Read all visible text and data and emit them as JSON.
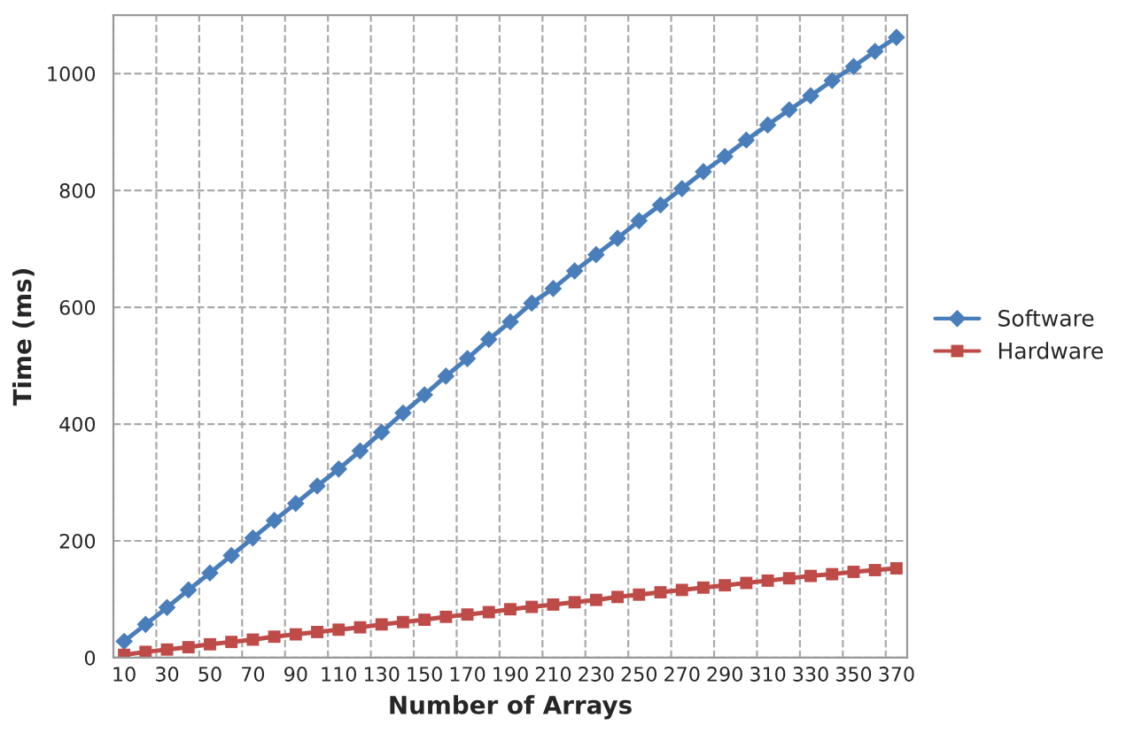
{
  "chart_data": {
    "type": "line",
    "xlabel": "Number of Arrays",
    "ylabel": "Time (ms)",
    "categories": [
      "10",
      null,
      "30",
      null,
      "50",
      null,
      "70",
      null,
      "90",
      null,
      "110",
      null,
      "130",
      null,
      "150",
      null,
      "170",
      null,
      "190",
      null,
      "210",
      null,
      "230",
      null,
      "250",
      null,
      "270",
      null,
      "290",
      null,
      "310",
      null,
      "330",
      null,
      "350",
      null,
      "370"
    ],
    "series": [
      {
        "name": "Software",
        "color": "#4a7ebb",
        "marker": "diamond",
        "values": [
          28,
          57,
          86,
          116,
          145,
          175,
          205,
          235,
          264,
          294,
          323,
          354,
          386,
          419,
          450,
          482,
          512,
          545,
          575,
          607,
          632,
          662,
          690,
          718,
          748,
          775,
          803,
          832,
          858,
          886,
          912,
          938,
          962,
          988,
          1012,
          1038,
          1062
        ]
      },
      {
        "name": "Hardware",
        "color": "#be4b48",
        "marker": "square",
        "values": [
          5,
          10,
          14,
          18,
          23,
          27,
          31,
          36,
          40,
          44,
          48,
          52,
          57,
          61,
          65,
          70,
          74,
          78,
          83,
          87,
          91,
          95,
          99,
          104,
          108,
          112,
          116,
          120,
          124,
          128,
          132,
          136,
          140,
          143,
          147,
          150,
          153
        ]
      }
    ],
    "ylim": [
      0,
      1100
    ],
    "yticks": [
      0,
      200,
      400,
      600,
      800,
      1000
    ],
    "grid": true,
    "legend": "right",
    "line_style": "solid"
  }
}
